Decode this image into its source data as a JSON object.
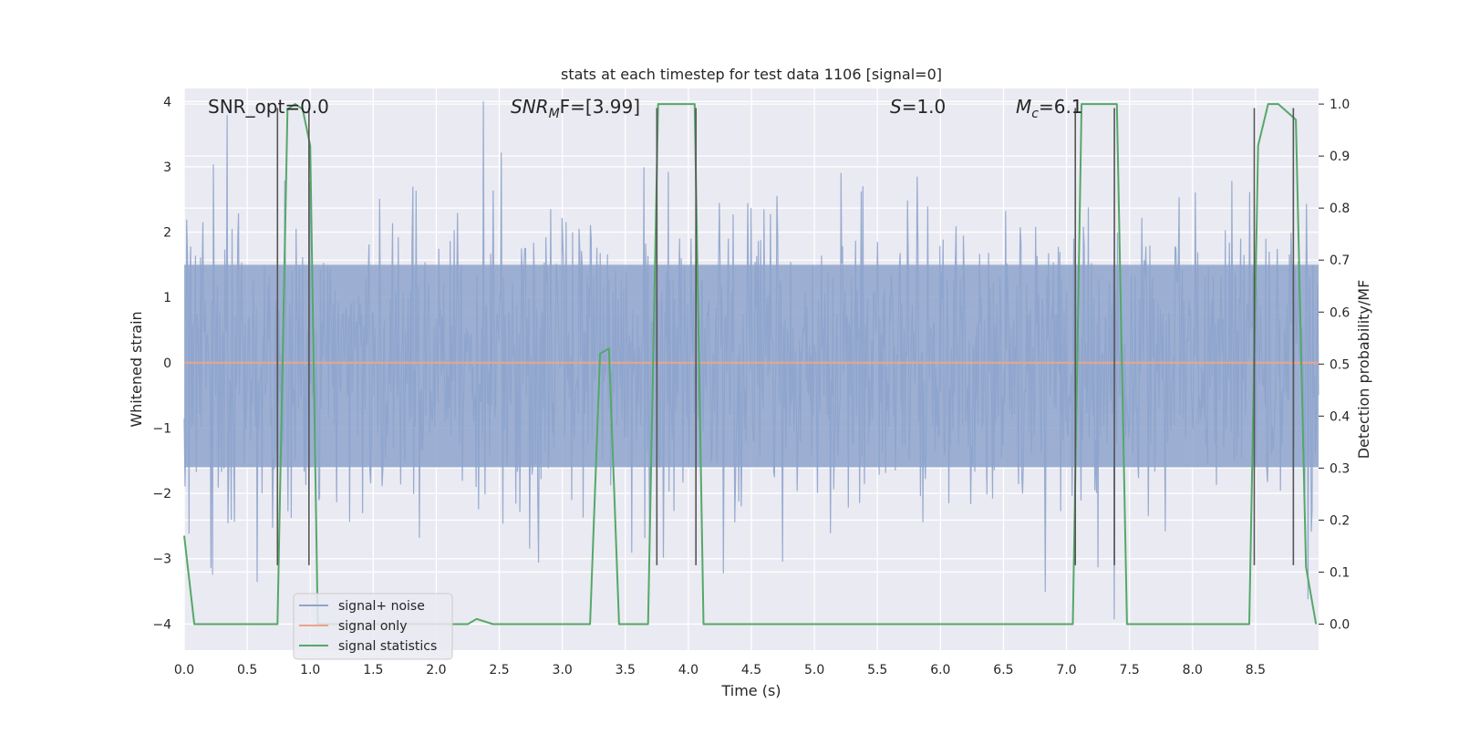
{
  "chart_data": {
    "type": "line",
    "title": "stats at each timestep for test data 1106 [signal=0]",
    "xlabel": "Time (s)",
    "ylabel": "Whitened strain",
    "y2label": "Detection probability/MF",
    "xlim": [
      0.0,
      9.0
    ],
    "ylim": [
      -4.4,
      4.2
    ],
    "y2lim": [
      -0.05,
      1.03
    ],
    "grid": true,
    "legend_position": "lower-left",
    "x_ticks": [
      "0.0",
      "0.5",
      "1.0",
      "1.5",
      "2.0",
      "2.5",
      "3.0",
      "3.5",
      "4.0",
      "4.5",
      "5.0",
      "5.5",
      "6.0",
      "6.5",
      "7.0",
      "7.5",
      "8.0",
      "8.5"
    ],
    "y_ticks": [
      "4",
      "3",
      "2",
      "1",
      "0",
      "−1",
      "−2",
      "−3",
      "−4"
    ],
    "y2_ticks": [
      "1.0",
      "0.9",
      "0.8",
      "0.7",
      "0.6",
      "0.5",
      "0.4",
      "0.3",
      "0.2",
      "0.1",
      "0.0"
    ],
    "annotations": [
      {
        "prefix": "SNR_opt=0.0",
        "base": "",
        "sub": "",
        "suffix": ""
      },
      {
        "prefix": "",
        "base": "SNR",
        "sub": "M",
        "suffix": "F=[3.99]"
      },
      {
        "prefix": "",
        "base": "S",
        "sub": "",
        "suffix": "=1.0"
      },
      {
        "prefix": "",
        "base": "M",
        "sub": "c",
        "suffix": "=6.1"
      }
    ],
    "series": [
      {
        "name": "signal+ noise",
        "color": "#8ea4cc",
        "axis": "left",
        "description": "whitened noise, roughly within ±4",
        "envelope": {
          "core": [
            -1.6,
            1.5
          ],
          "peaks": [
            -4.1,
            4.0
          ]
        }
      },
      {
        "name": "signal only",
        "color": "#e8a58a",
        "axis": "left",
        "x": [
          0.0,
          9.0
        ],
        "y": [
          0.0,
          0.0
        ]
      },
      {
        "name": "signal statistics",
        "color": "#55a868",
        "axis": "right",
        "x": [
          0.0,
          0.08,
          0.12,
          0.74,
          0.82,
          0.88,
          0.94,
          1.0,
          1.06,
          2.1,
          2.25,
          2.32,
          2.45,
          3.22,
          3.3,
          3.37,
          3.45,
          3.68,
          3.76,
          3.82,
          4.05,
          4.12,
          4.18,
          7.05,
          7.12,
          7.4,
          7.48,
          8.45,
          8.52,
          8.6,
          8.68,
          8.82,
          8.9,
          8.98
        ],
        "y": [
          0.17,
          0.0,
          0.0,
          0.0,
          0.99,
          1.0,
          0.99,
          0.92,
          0.0,
          0.0,
          0.0,
          0.01,
          0.0,
          0.0,
          0.52,
          0.53,
          0.0,
          0.0,
          1.0,
          1.0,
          1.0,
          0.0,
          0.0,
          0.0,
          1.0,
          1.0,
          0.0,
          0.0,
          0.92,
          1.0,
          1.0,
          0.97,
          0.11,
          0.0
        ]
      }
    ],
    "vertical_markers": {
      "color": "#555555",
      "x": [
        0.74,
        0.99,
        3.75,
        4.06,
        7.07,
        7.38,
        8.49,
        8.8
      ],
      "y_range": [
        -3.1,
        3.9
      ]
    }
  }
}
